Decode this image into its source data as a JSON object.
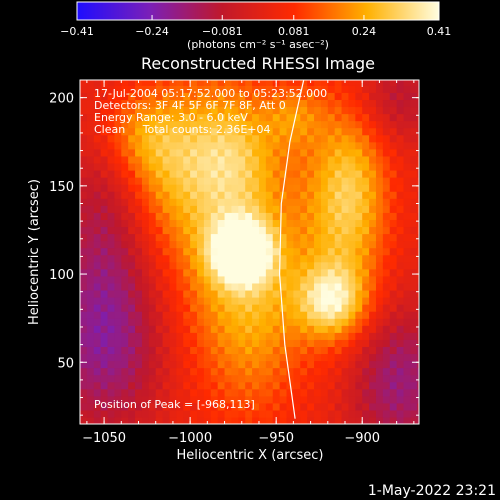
{
  "chart_data": {
    "type": "heatmap",
    "title": "Reconstructed RHESSI Image",
    "info_lines": [
      "17-Jul-2004 05:17:52.000 to 05:23:52.000",
      "Detectors: 3F 4F 5F 6F 7F 8F, Att 0",
      "Energy Range: 3.0 - 6.0 keV",
      "Clean     Total counts: 2.36E+04"
    ],
    "peak_label": "Position of Peak = [-968,113]",
    "peak": {
      "x": -968,
      "y": 113
    },
    "xlabel": "Heliocentric X (arcsec)",
    "ylabel": "Heliocentric Y (arcsec)",
    "xlim": [
      -1064,
      -867
    ],
    "ylim": [
      15,
      210
    ],
    "xticks": [
      -1050,
      -1000,
      -950,
      -900
    ],
    "yticks": [
      50,
      100,
      150,
      200
    ],
    "xtick_labels": [
      "−1050",
      "−1000",
      "−950",
      "−900"
    ],
    "ytick_labels": [
      "50",
      "100",
      "150",
      "200"
    ],
    "colorbar": {
      "range": [
        -0.41,
        0.41
      ],
      "ticks": [
        -0.41,
        -0.24,
        -0.081,
        0.081,
        0.24,
        0.41
      ],
      "tick_labels": [
        "−0.41",
        "−0.24",
        "−0.081",
        "0.081",
        "0.24",
        "0.41"
      ],
      "unit_label": "(photons cm⁻² s⁻¹ asec⁻²)",
      "colors": [
        "#1e0dff",
        "#7a1fb8",
        "#c0182b",
        "#ff2a00",
        "#ffb000",
        "#fffde0"
      ]
    },
    "sources": [
      {
        "x": -970,
        "y": 113,
        "amp": 0.41,
        "sx": 12,
        "sy": 12
      },
      {
        "x": -985,
        "y": 125,
        "amp": 0.18,
        "sx": 22,
        "sy": 60
      },
      {
        "x": -975,
        "y": 170,
        "amp": 0.16,
        "sx": 20,
        "sy": 25
      },
      {
        "x": -960,
        "y": 85,
        "amp": 0.16,
        "sx": 18,
        "sy": 45
      },
      {
        "x": -1015,
        "y": 160,
        "amp": 0.14,
        "sx": 18,
        "sy": 30
      },
      {
        "x": -1030,
        "y": 180,
        "amp": 0.14,
        "sx": 18,
        "sy": 18
      },
      {
        "x": -918,
        "y": 85,
        "amp": 0.26,
        "sx": 14,
        "sy": 14
      },
      {
        "x": -915,
        "y": 125,
        "amp": 0.18,
        "sx": 20,
        "sy": 55
      },
      {
        "x": -905,
        "y": 150,
        "amp": 0.14,
        "sx": 14,
        "sy": 30
      },
      {
        "x": -940,
        "y": 190,
        "amp": 0.12,
        "sx": 12,
        "sy": 12
      },
      {
        "x": -1050,
        "y": 60,
        "amp": -0.2,
        "sx": 25,
        "sy": 35
      },
      {
        "x": -880,
        "y": 40,
        "amp": -0.2,
        "sx": 22,
        "sy": 30
      },
      {
        "x": -1050,
        "y": 130,
        "amp": -0.12,
        "sx": 18,
        "sy": 40
      },
      {
        "x": -880,
        "y": 200,
        "amp": -0.12,
        "sx": 18,
        "sy": 18
      }
    ],
    "limb_curve": [
      [
        -939,
        18
      ],
      [
        -945,
        60
      ],
      [
        -948,
        100
      ],
      [
        -947,
        140
      ],
      [
        -942,
        175
      ],
      [
        -934,
        210
      ]
    ]
  },
  "timestamp": "1-May-2022 23:21"
}
